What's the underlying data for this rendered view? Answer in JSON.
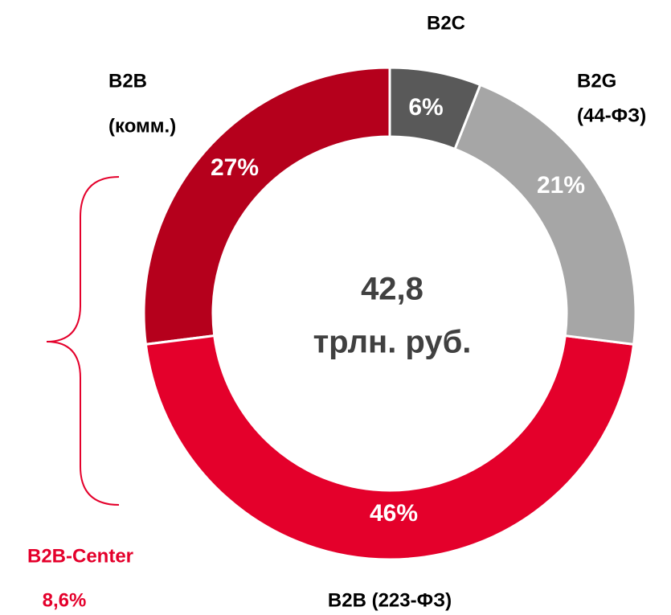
{
  "chart_data": {
    "type": "donut",
    "categories": [
      [
        "B2C"
      ],
      [
        "B2G",
        "(44-ФЗ)"
      ],
      [
        "B2B (223-ФЗ)"
      ],
      [
        "B2B",
        "(комм.)"
      ]
    ],
    "values": [
      6,
      21,
      46,
      27
    ],
    "value_labels": [
      "6%",
      "21%",
      "46%",
      "27%"
    ],
    "colors": [
      "#595959",
      "#a6a6a6",
      "#e4002b",
      "#b5001c"
    ],
    "center_text": [
      "42,8",
      "трлн. руб."
    ],
    "annotation": {
      "lines": [
        "B2B-Center",
        "8,6%"
      ],
      "color": "#e4002b"
    }
  }
}
